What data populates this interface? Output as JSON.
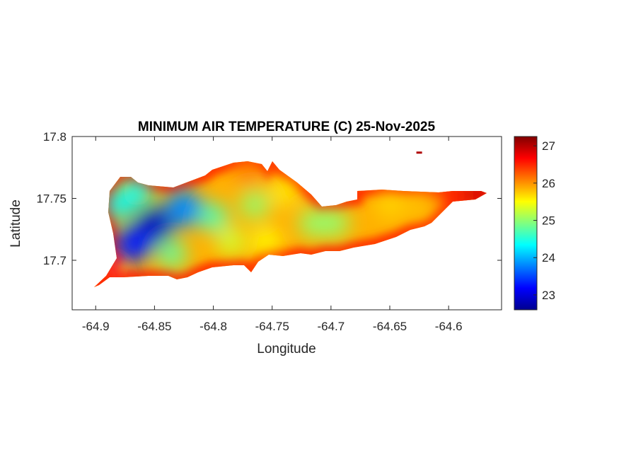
{
  "chart_data": {
    "type": "heatmap",
    "title": "MINIMUM AIR TEMPERATURE (C) 25-Nov-2025",
    "xlabel": "Longitude",
    "ylabel": "Latitude",
    "xlim": [
      -64.92,
      -64.555
    ],
    "ylim": [
      17.66,
      17.8
    ],
    "xticks": [
      -64.9,
      -64.85,
      -64.8,
      -64.75,
      -64.7,
      -64.65,
      -64.6
    ],
    "xtick_labels": [
      "-64.9",
      "-64.85",
      "-64.8",
      "-64.75",
      "-64.7",
      "-64.65",
      "-64.6"
    ],
    "yticks": [
      17.7,
      17.75,
      17.8
    ],
    "ytick_labels": [
      "17.7",
      "17.75",
      "17.8"
    ],
    "colorbar": {
      "colormap": "jet",
      "range": [
        22.6,
        27.25
      ],
      "ticks": [
        23,
        24,
        25,
        26,
        27
      ],
      "tick_labels": [
        "23",
        "24",
        "25",
        "26",
        "27"
      ],
      "placement": "right"
    },
    "samples": [
      {
        "lon": -64.85,
        "lat": 17.728,
        "value": 22.9
      },
      {
        "lon": -64.868,
        "lat": 17.713,
        "value": 23.3
      },
      {
        "lon": -64.825,
        "lat": 17.742,
        "value": 23.8
      },
      {
        "lon": -64.88,
        "lat": 17.745,
        "value": 24.3
      },
      {
        "lon": -64.865,
        "lat": 17.755,
        "value": 24.4
      },
      {
        "lon": -64.8,
        "lat": 17.735,
        "value": 24.7
      },
      {
        "lon": -64.835,
        "lat": 17.705,
        "value": 24.8
      },
      {
        "lon": -64.765,
        "lat": 17.745,
        "value": 25.0
      },
      {
        "lon": -64.785,
        "lat": 17.715,
        "value": 25.3
      },
      {
        "lon": -64.74,
        "lat": 17.755,
        "value": 25.6
      },
      {
        "lon": -64.755,
        "lat": 17.715,
        "value": 25.5
      },
      {
        "lon": -64.715,
        "lat": 17.73,
        "value": 25.0
      },
      {
        "lon": -64.697,
        "lat": 17.73,
        "value": 25.0
      },
      {
        "lon": -64.65,
        "lat": 17.745,
        "value": 25.7
      },
      {
        "lon": -64.625,
        "lat": 17.745,
        "value": 25.8
      },
      {
        "lon": -64.77,
        "lat": 17.772,
        "value": 26.1
      },
      {
        "lon": -64.6,
        "lat": 17.752,
        "value": 26.5
      },
      {
        "lon": -64.575,
        "lat": 17.755,
        "value": 26.9
      },
      {
        "lon": -64.895,
        "lat": 17.682,
        "value": 26.5
      },
      {
        "lon": -64.625,
        "lat": 17.787,
        "value": 27.0
      }
    ]
  }
}
